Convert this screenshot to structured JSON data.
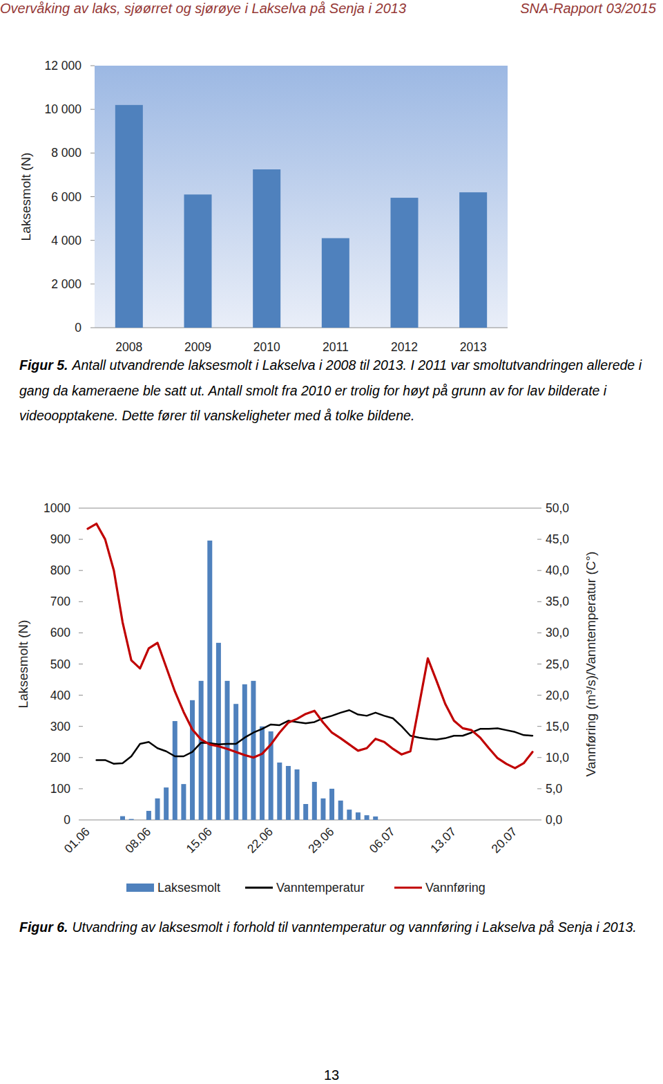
{
  "header": {
    "left": "Overvåking av laks, sjøørret og sjørøye i Lakselva på Senja i 2013",
    "right": "SNA-Rapport 03/2015"
  },
  "page_number": "13",
  "chart_data": [
    {
      "type": "bar",
      "caption_label": "Figur 5.",
      "caption": "Antall utvandrende laksesmolt i Lakselva i 2008 til 2013. I 2011 var smoltutvandringen allerede i gang da kameraene ble satt ut. Antall smolt fra 2010 er trolig for høyt på grunn av for lav bilderate i videoopptakene. Dette fører til vanskeligheter med å tolke bildene.",
      "ylabel": "Laksesmolt (N)",
      "categories": [
        "2008",
        "2009",
        "2010",
        "2011",
        "2012",
        "2013"
      ],
      "values": [
        10200,
        6100,
        7250,
        4100,
        5950,
        6200
      ],
      "color": "#4f81bd",
      "ylim": [
        0,
        12000
      ],
      "yticks": [
        0,
        {
          "value": 2000,
          "label": "2 000"
        },
        {
          "value": 4000,
          "label": "4 000"
        },
        {
          "value": 6000,
          "label": "6 000"
        },
        {
          "value": 8000,
          "label": "8 000"
        },
        {
          "value": 10000,
          "label": "10 000"
        },
        {
          "value": 12000,
          "label": "12 000"
        }
      ],
      "grid": false
    },
    {
      "type": "bar",
      "caption_label": "Figur 6.",
      "caption": "Utvandring av laksesmolt i forhold til vanntemperatur og vannføring i Lakselva på Senja i 2013.",
      "ylabel": "Laksesmolt (N)",
      "y2label": "Vannføring (m³/s)/Vanntemperatur (C°)",
      "categories": [
        "01.06",
        null,
        null,
        null,
        null,
        null,
        null,
        "08.06",
        null,
        null,
        null,
        null,
        null,
        null,
        "15.06",
        null,
        null,
        null,
        null,
        null,
        null,
        "22.06",
        null,
        null,
        null,
        null,
        null,
        null,
        "29.06",
        null,
        null,
        null,
        null,
        null,
        null,
        "06.07",
        null,
        null,
        null,
        null,
        null,
        null,
        "13.07",
        null,
        null,
        null,
        null,
        null,
        null,
        "20.07",
        null,
        null
      ],
      "series": [
        {
          "name": "Laksesmolt",
          "type": "bar",
          "color": "#4f81bd",
          "values": [
            0,
            0,
            0,
            0,
            12,
            3,
            0,
            29,
            69,
            104,
            317,
            115,
            384,
            446,
            896,
            568,
            446,
            372,
            435,
            446,
            300,
            284,
            184,
            173,
            162,
            51,
            122,
            69,
            100,
            62,
            33,
            24,
            15,
            11,
            0,
            0,
            0,
            0,
            0,
            0,
            0,
            0,
            0,
            0,
            0,
            0,
            0,
            0,
            0,
            0,
            0,
            0
          ]
        },
        {
          "name": "Vanntemperatur",
          "type": "line",
          "color": "#000000",
          "axis": "y2",
          "values": [
            null,
            9.6,
            9.6,
            9.0,
            9.1,
            10.2,
            12.2,
            12.5,
            11.5,
            11.0,
            10.2,
            10.2,
            10.9,
            12.4,
            12.3,
            12.1,
            12.2,
            12.2,
            13.2,
            14.0,
            14.6,
            15.3,
            15.2,
            15.9,
            15.7,
            15.5,
            15.7,
            16.3,
            16.7,
            17.2,
            17.6,
            16.9,
            16.7,
            17.2,
            16.7,
            16.3,
            15.0,
            13.5,
            13.2,
            13.0,
            12.9,
            13.1,
            13.5,
            13.5,
            14.0,
            14.6,
            14.6,
            14.7,
            14.4,
            14.1,
            13.6,
            13.5
          ]
        },
        {
          "name": "Vannføring",
          "type": "line",
          "color": "#c00000",
          "axis": "y2",
          "values": [
            46.7,
            47.5,
            45.0,
            40.0,
            31.7,
            25.6,
            24.3,
            27.5,
            28.4,
            24.5,
            20.6,
            17.3,
            14.5,
            12.9,
            12.1,
            11.8,
            11.4,
            10.9,
            10.4,
            10.0,
            10.6,
            12.1,
            14.0,
            15.6,
            16.2,
            17.0,
            17.5,
            15.6,
            14.0,
            13.1,
            12.1,
            11.1,
            11.5,
            13.0,
            12.5,
            11.4,
            10.5,
            11.0,
            18.4,
            25.9,
            22.3,
            18.6,
            15.9,
            14.7,
            14.4,
            13.2,
            11.5,
            9.9,
            9.0,
            8.3,
            9.1,
            10.9
          ]
        }
      ],
      "ylim": [
        0,
        1000
      ],
      "yticks": [
        0,
        100,
        200,
        300,
        400,
        500,
        600,
        700,
        800,
        900,
        1000
      ],
      "y2lim": [
        0,
        50
      ],
      "y2ticks": [
        {
          "value": 0,
          "label": "0,0"
        },
        {
          "value": 5,
          "label": "5,0"
        },
        {
          "value": 10,
          "label": "10,0"
        },
        {
          "value": 15,
          "label": "15,0"
        },
        {
          "value": 20,
          "label": "20,0"
        },
        {
          "value": 25,
          "label": "25,0"
        },
        {
          "value": 30,
          "label": "30,0"
        },
        {
          "value": 35,
          "label": "35,0"
        },
        {
          "value": 40,
          "label": "40,0"
        },
        {
          "value": 45,
          "label": "45,0"
        },
        {
          "value": 50,
          "label": "50,0"
        }
      ],
      "legend": "bottom",
      "grid": false
    }
  ]
}
